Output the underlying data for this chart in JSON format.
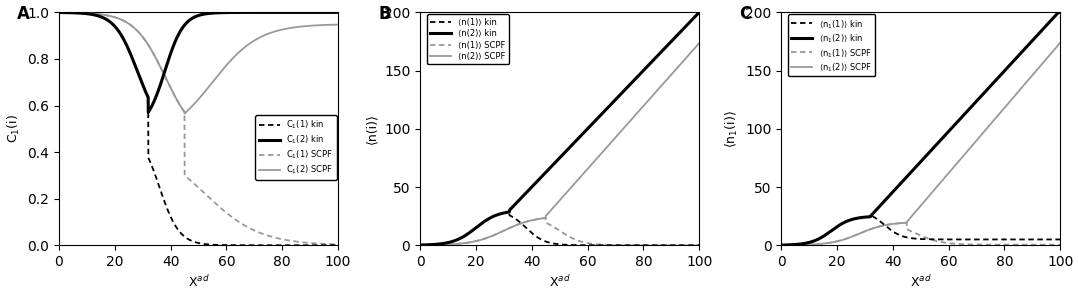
{
  "xmin": 0,
  "xmax": 100,
  "panel_A": {
    "label": "A",
    "ylabel": "C$_1$(i)",
    "ylim": [
      0,
      1
    ],
    "yticks": [
      0,
      0.2,
      0.4,
      0.6,
      0.8,
      1.0
    ],
    "legend": [
      "C$_1$(1) kin",
      "C$_1$(2) kin",
      "C$_1$(1) SCPF",
      "C$_1$(2) SCPF"
    ]
  },
  "panel_B": {
    "label": "B",
    "ylabel": "⟨n(i)⟩",
    "ylim": [
      0,
      200
    ],
    "yticks": [
      0,
      50,
      100,
      150,
      200
    ],
    "legend": [
      "⟨n(1)⟩ kin",
      "⟨n(2)⟩ kin",
      "⟨n(1)⟩ SCPF",
      "⟨n(2)⟩ SCPF"
    ]
  },
  "panel_C": {
    "label": "C",
    "ylabel": "⟨n$_1$(i)⟩",
    "ylim": [
      0,
      200
    ],
    "yticks": [
      0,
      50,
      100,
      150,
      200
    ],
    "legend": [
      "⟨n$_1$(1)⟩ kin",
      "⟨n$_1$(2)⟩ kin",
      "⟨n$_1$(1)⟩ SCPF",
      "⟨n$_1$(2)⟩ SCPF"
    ]
  },
  "colors": {
    "kin": "#000000",
    "scpf": "#999999"
  },
  "xlabel": "X$^{ad}$",
  "lw_thick": 2.2,
  "lw_thin": 1.3
}
